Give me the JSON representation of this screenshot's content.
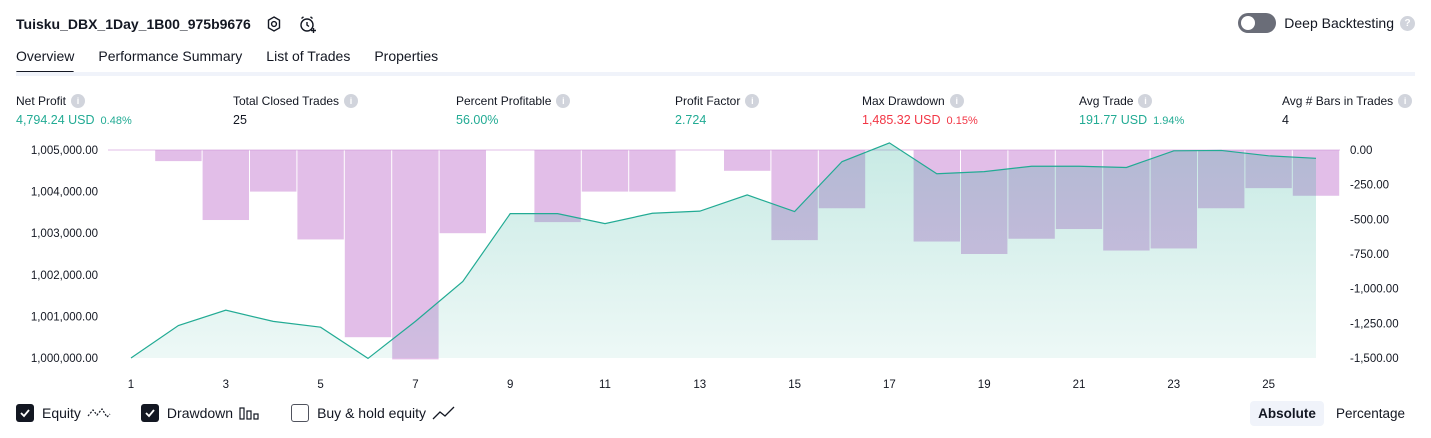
{
  "header": {
    "title": "Tuisku_DBX_1Day_1B00_975b9676",
    "deep_backtesting_label": "Deep Backtesting"
  },
  "tabs": [
    {
      "label": "Overview",
      "active": true
    },
    {
      "label": "Performance Summary",
      "active": false
    },
    {
      "label": "List of Trades",
      "active": false
    },
    {
      "label": "Properties",
      "active": false
    }
  ],
  "metrics": [
    {
      "label": "Net Profit",
      "value": "4,794.24 USD",
      "pct": "0.48%",
      "color": "green"
    },
    {
      "label": "Total Closed Trades",
      "value": "25",
      "pct": "",
      "color": "dark"
    },
    {
      "label": "Percent Profitable",
      "value": "56.00%",
      "pct": "",
      "color": "green"
    },
    {
      "label": "Profit Factor",
      "value": "2.724",
      "pct": "",
      "color": "green"
    },
    {
      "label": "Max Drawdown",
      "value": "1,485.32 USD",
      "pct": "0.15%",
      "color": "red"
    },
    {
      "label": "Avg Trade",
      "value": "191.77 USD",
      "pct": "1.94%",
      "color": "green"
    },
    {
      "label": "Avg # Bars in Trades",
      "value": "4",
      "pct": "",
      "color": "dark"
    }
  ],
  "chart_data": {
    "type": "line",
    "left_axis_ticks": [
      "1,005,000.00",
      "1,004,000.00",
      "1,003,000.00",
      "1,002,000.00",
      "1,001,000.00",
      "1,000,000.00"
    ],
    "right_axis_ticks": [
      "0.00",
      "-250.00",
      "-500.00",
      "-750.00",
      "-1,000.00",
      "-1,250.00",
      "-1,500.00"
    ],
    "x_tick_labels": [
      "1",
      "3",
      "5",
      "7",
      "9",
      "11",
      "13",
      "15",
      "17",
      "19",
      "21",
      "23",
      "25"
    ],
    "left_ylim": [
      1000000,
      1005000
    ],
    "right_ylim": [
      -1500,
      0
    ],
    "series": [
      {
        "name": "Equity",
        "type": "area",
        "color": "#22ab94",
        "x": [
          1,
          2,
          3,
          4,
          5,
          6,
          7,
          8,
          9,
          10,
          11,
          12,
          13,
          14,
          15,
          16,
          17,
          18,
          19,
          20,
          21,
          22,
          23,
          24,
          25,
          26
        ],
        "values": [
          1000000,
          1000780,
          1001150,
          1000880,
          1000740,
          999990,
          1000880,
          1001840,
          1003470,
          1003470,
          1003230,
          1003480,
          1003530,
          1003920,
          1003520,
          1004720,
          1005170,
          1004430,
          1004480,
          1004610,
          1004610,
          1004580,
          1004980,
          1004990,
          1004860,
          1004800
        ]
      },
      {
        "name": "Drawdown",
        "type": "bar",
        "color": "#ce93d8",
        "x": [
          1,
          2,
          3,
          4,
          5,
          6,
          7,
          8,
          9,
          10,
          11,
          12,
          13,
          14,
          15,
          16,
          17,
          18,
          19,
          20,
          21,
          22,
          23,
          24,
          25,
          26
        ],
        "values": [
          0,
          -80,
          -505,
          -300,
          -645,
          -1350,
          -1510,
          -600,
          0,
          -520,
          -300,
          -300,
          0,
          -150,
          -650,
          -420,
          0,
          -660,
          -750,
          -640,
          -570,
          -725,
          -710,
          -420,
          -275,
          -330
        ]
      }
    ]
  },
  "legend": {
    "equity_label": "Equity",
    "drawdown_label": "Drawdown",
    "buyhold_label": "Buy & hold equity",
    "equity_checked": true,
    "drawdown_checked": true,
    "buyhold_checked": false
  },
  "mode": {
    "absolute_label": "Absolute",
    "percentage_label": "Percentage",
    "active": "Absolute"
  }
}
